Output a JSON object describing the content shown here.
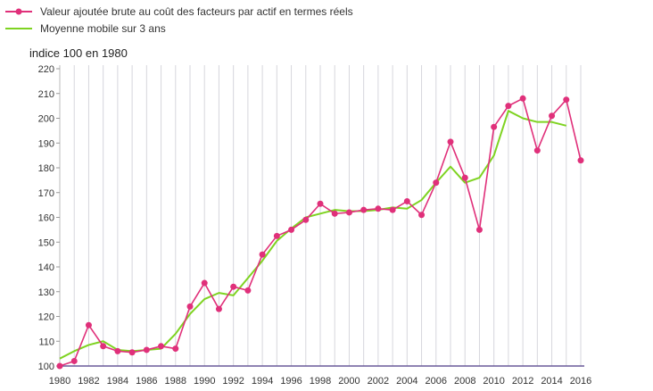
{
  "chart_data": {
    "type": "line",
    "ylabel": "indice 100 en 1980",
    "xlabel": "",
    "title": "",
    "ylim": [
      100,
      220
    ],
    "xlim": [
      1980,
      2016
    ],
    "x_ticks": [
      1980,
      1982,
      1984,
      1986,
      1988,
      1990,
      1992,
      1994,
      1996,
      1998,
      2000,
      2002,
      2004,
      2006,
      2008,
      2010,
      2012,
      2014,
      2016
    ],
    "y_ticks": [
      100,
      110,
      120,
      130,
      140,
      150,
      160,
      170,
      180,
      190,
      200,
      210,
      220
    ],
    "grid": "vertical",
    "legend_position": "top-left",
    "series": [
      {
        "name": "Valeur ajoutée brute au coût des facteurs par actif en termes réels",
        "color": "#e0307a",
        "markers": true,
        "x": [
          1980,
          1981,
          1982,
          1983,
          1984,
          1985,
          1986,
          1987,
          1988,
          1989,
          1990,
          1991,
          1992,
          1993,
          1994,
          1995,
          1996,
          1997,
          1998,
          1999,
          2000,
          2001,
          2002,
          2003,
          2004,
          2005,
          2006,
          2007,
          2008,
          2009,
          2010,
          2011,
          2012,
          2013,
          2014,
          2015,
          2016
        ],
        "values": [
          100,
          102,
          116.5,
          108,
          106,
          105.5,
          106.5,
          108,
          107,
          124,
          133.5,
          123,
          132,
          130.5,
          145,
          152.5,
          155,
          159,
          165.5,
          161.5,
          162,
          163,
          163.5,
          163,
          166.5,
          161,
          174,
          190.5,
          176,
          155,
          196.5,
          205,
          208,
          187,
          201,
          207.5,
          183
        ]
      },
      {
        "name": "Moyenne mobile sur 3 ans",
        "color": "#7ed321",
        "markers": false,
        "x": [
          1980,
          1981,
          1982,
          1983,
          1984,
          1985,
          1986,
          1987,
          1988,
          1989,
          1990,
          1991,
          1992,
          1993,
          1994,
          1995,
          1996,
          1997,
          1998,
          1999,
          2000,
          2001,
          2002,
          2003,
          2004,
          2005,
          2006,
          2007,
          2008,
          2009,
          2010,
          2011,
          2012,
          2013,
          2014,
          2015
        ],
        "values": [
          103,
          106,
          108.5,
          110,
          106.5,
          106,
          106.5,
          107,
          113,
          121,
          127,
          129.5,
          128.5,
          135.5,
          142.5,
          150.5,
          155.5,
          160,
          161.5,
          163,
          162.5,
          162.5,
          163,
          164,
          163.5,
          167,
          174,
          180.5,
          174,
          176,
          185,
          203,
          200,
          198.5,
          198.5,
          197
        ]
      }
    ]
  }
}
